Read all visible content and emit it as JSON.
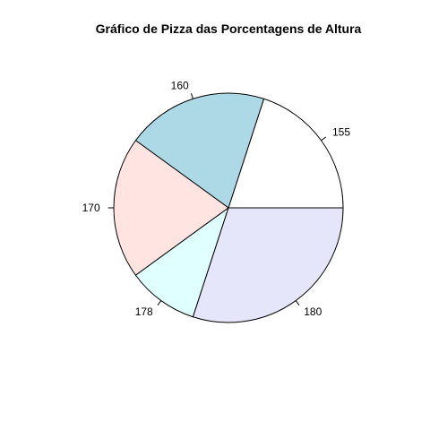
{
  "chart_data": {
    "type": "pie",
    "title": "Gráfico de Pizza das Porcentagens de Altura",
    "direction": "counterclockwise",
    "start_angle_deg": 0,
    "slices": [
      {
        "label": "155",
        "value": 20,
        "color": "#ffffff"
      },
      {
        "label": "160",
        "value": 20,
        "color": "#add8e6"
      },
      {
        "label": "170",
        "value": 20,
        "color": "#ffe4e1"
      },
      {
        "label": "178",
        "value": 10,
        "color": "#e0ffff"
      },
      {
        "label": "180",
        "value": 30,
        "color": "#e6e6fa"
      }
    ]
  }
}
